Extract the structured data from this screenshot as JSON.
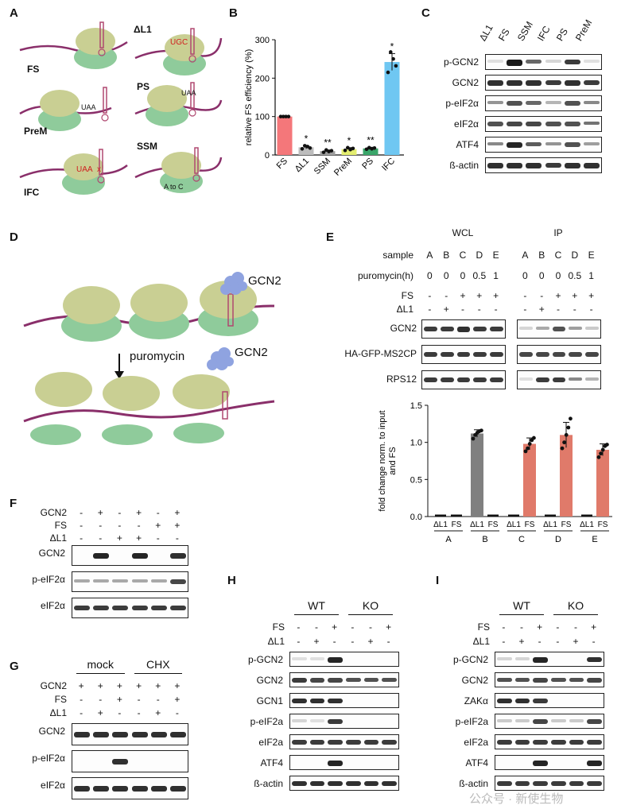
{
  "panel_a": {
    "letter": "A",
    "labels": {
      "fs": "FS",
      "dl1": "ΔL1",
      "prem": "PreM",
      "ps": "PS",
      "ssm": "SSM",
      "ifc": "IFC"
    },
    "codon_labels": {
      "ugc": "UGC",
      "uaa_1": "UAA",
      "uaa_2": "UAA",
      "uaa_x": "UAA",
      "x": "x",
      "a_to_c": "A to C"
    }
  },
  "panel_b": {
    "letter": "B",
    "chart_data": {
      "type": "bar",
      "categories": [
        "FS",
        "ΔL1",
        "SSM",
        "PreM",
        "PS",
        "IFC"
      ],
      "values": [
        100,
        20,
        10,
        15,
        17,
        242
      ],
      "errors": [
        0,
        4,
        3,
        4,
        3,
        22
      ],
      "significance": [
        "",
        "*",
        "**",
        "*",
        "**",
        "*"
      ],
      "bar_colors": [
        "#f4777a",
        "#bdbdbd",
        "#9e9e9e",
        "#e4ee70",
        "#3aa66a",
        "#6fc7f2"
      ],
      "points": [
        [
          100,
          100,
          100,
          100
        ],
        [
          16,
          24,
          22,
          18
        ],
        [
          7,
          13,
          9,
          11
        ],
        [
          12,
          19,
          14,
          17
        ],
        [
          15,
          19,
          16,
          18
        ],
        [
          215,
          268,
          250,
          232
        ]
      ],
      "ylabel": "relative FS efficiency (%)",
      "ylim": [
        0,
        300
      ],
      "yticks": [
        0,
        100,
        200,
        300
      ]
    }
  },
  "panel_c": {
    "letter": "C",
    "lanes": [
      "ΔL1",
      "FS",
      "SSM",
      "IFC",
      "PS",
      "PreM"
    ],
    "rows": [
      {
        "label": "p-GCN2",
        "levels": [
          0.05,
          0.95,
          0.6,
          0.1,
          0.8,
          0.05
        ]
      },
      {
        "label": "GCN2",
        "levels": [
          0.85,
          0.85,
          0.85,
          0.8,
          0.85,
          0.8
        ]
      },
      {
        "label": "p-eIF2α",
        "levels": [
          0.4,
          0.7,
          0.6,
          0.25,
          0.7,
          0.45
        ]
      },
      {
        "label": "eIF2α",
        "levels": [
          0.7,
          0.75,
          0.75,
          0.7,
          0.7,
          0.55
        ]
      },
      {
        "label": "ATF4",
        "levels": [
          0.45,
          0.9,
          0.65,
          0.4,
          0.7,
          0.35
        ]
      },
      {
        "label": "ß-actin",
        "levels": [
          0.85,
          0.85,
          0.85,
          0.8,
          0.85,
          0.85
        ]
      }
    ]
  },
  "panel_d": {
    "letter": "D",
    "gcn2_top": "GCN2",
    "gcn2_mid": "GCN2",
    "arrow_label": "puromycin"
  },
  "panel_e": {
    "letter": "E",
    "group_wcl": "WCL",
    "group_ip": "IP",
    "sample_label": "sample",
    "puromycin_label": "puromycin(h)",
    "fs_label": "FS",
    "dl1_label": "ΔL1",
    "samples": [
      "A",
      "B",
      "C",
      "D",
      "E"
    ],
    "puromycin": [
      "0",
      "0",
      "0",
      "0.5",
      "1"
    ],
    "fs": [
      "-",
      "-",
      "+",
      "+",
      "+"
    ],
    "dl1": [
      "-",
      "+",
      "-",
      "-",
      "-"
    ],
    "blots": [
      {
        "label": "GCN2",
        "wcl": [
          0.8,
          0.8,
          0.85,
          0.8,
          0.8
        ],
        "ip": [
          0.1,
          0.3,
          0.7,
          0.35,
          0.15
        ]
      },
      {
        "label": "HA-GFP-MS2CP",
        "wcl": [
          0.8,
          0.8,
          0.8,
          0.8,
          0.8
        ],
        "ip": [
          0.75,
          0.75,
          0.75,
          0.75,
          0.75
        ]
      },
      {
        "label": "RPS12",
        "wcl": [
          0.8,
          0.8,
          0.8,
          0.8,
          0.8
        ],
        "ip": [
          0.05,
          0.8,
          0.8,
          0.45,
          0.25
        ]
      }
    ],
    "chart_data": {
      "type": "bar",
      "groups": [
        "A",
        "B",
        "C",
        "D",
        "E"
      ],
      "subcategories": [
        "ΔL1",
        "FS"
      ],
      "series": [
        {
          "name": "ΔL1",
          "values": [
            0,
            1.12,
            0,
            0,
            0
          ]
        },
        {
          "name": "FS",
          "values": [
            0,
            0,
            0.98,
            1.1,
            0.9
          ]
        }
      ],
      "errors": {
        "ΔL1": [
          0,
          0.05,
          0,
          0,
          0
        ],
        "FS": [
          0,
          0,
          0.08,
          0.17,
          0.08
        ]
      },
      "points": {
        "ΔL1": [
          [],
          [
            1.05,
            1.1,
            1.13,
            1.15,
            1.16
          ],
          [],
          [],
          []
        ],
        "FS": [
          [],
          [],
          [
            0.88,
            0.92,
            0.98,
            1.03,
            1.06
          ],
          [
            0.92,
            1.0,
            1.1,
            1.2,
            1.32
          ],
          [
            0.8,
            0.85,
            0.9,
            0.95,
            0.97
          ]
        ]
      },
      "bar_colors": {
        "ΔL1": "#808080",
        "FS": "#e07a6a"
      },
      "ylabel": "fold change norm. to input and FS",
      "ylim": [
        0,
        1.5
      ],
      "yticks": [
        "0.0",
        "0.5",
        "1.0",
        "1.5"
      ]
    }
  },
  "panel_f": {
    "letter": "F",
    "cond_labels": [
      "GCN2",
      "FS",
      "ΔL1"
    ],
    "conditions": [
      [
        "-",
        "+",
        "-",
        "+",
        "-",
        "+"
      ],
      [
        "-",
        "-",
        "-",
        "-",
        "+",
        "+"
      ],
      [
        "-",
        "-",
        "+",
        "+",
        "-",
        "-"
      ]
    ],
    "rows": [
      {
        "label": "GCN2",
        "levels": [
          0,
          0.9,
          0,
          0.9,
          0,
          0.85
        ]
      },
      {
        "label": "p-eIF2α",
        "levels": [
          0.3,
          0.3,
          0.3,
          0.3,
          0.3,
          0.75
        ]
      },
      {
        "label": "eIF2α",
        "levels": [
          0.8,
          0.8,
          0.8,
          0.8,
          0.8,
          0.8
        ]
      }
    ]
  },
  "panel_g": {
    "letter": "G",
    "group_mock": "mock",
    "group_chx": "CHX",
    "cond_labels": [
      "GCN2",
      "FS",
      "ΔL1"
    ],
    "conditions": [
      [
        "+",
        "+",
        "+",
        "+",
        "+",
        "+"
      ],
      [
        "-",
        "-",
        "+",
        "-",
        "-",
        "+"
      ],
      [
        "-",
        "+",
        "-",
        "-",
        "+",
        "-"
      ]
    ],
    "rows": [
      {
        "label": "GCN2",
        "levels": [
          0.85,
          0.85,
          0.85,
          0.85,
          0.85,
          0.85
        ]
      },
      {
        "label": "p-eIF2α",
        "levels": [
          0,
          0,
          0.85,
          0,
          0,
          0
        ]
      },
      {
        "label": "eIF2α",
        "levels": [
          0.85,
          0.85,
          0.85,
          0.85,
          0.85,
          0.85
        ]
      }
    ]
  },
  "panel_h": {
    "letter": "H",
    "gene": "GCN1",
    "group_wt": "WT",
    "group_ko": "KO",
    "cond_labels": [
      "FS",
      "ΔL1"
    ],
    "conditions": [
      [
        "-",
        "-",
        "+",
        "-",
        "-",
        "+"
      ],
      [
        "-",
        "+",
        "-",
        "-",
        "+",
        "-"
      ]
    ],
    "rows": [
      {
        "label": "p-GCN2",
        "levels": [
          0.05,
          0.05,
          0.9,
          0,
          0,
          0
        ]
      },
      {
        "label": "GCN2",
        "levels": [
          0.8,
          0.75,
          0.75,
          0.7,
          0.7,
          0.7
        ]
      },
      {
        "label": "GCN1",
        "levels": [
          0.85,
          0.85,
          0.85,
          0,
          0,
          0
        ]
      },
      {
        "label": "p-eIF2a",
        "levels": [
          0.1,
          0.05,
          0.8,
          0,
          0,
          0
        ]
      },
      {
        "label": "eIF2a",
        "levels": [
          0.8,
          0.8,
          0.8,
          0.8,
          0.8,
          0.8
        ]
      },
      {
        "label": "ATF4",
        "levels": [
          0,
          0,
          0.9,
          0,
          0,
          0
        ]
      },
      {
        "label": "ß-actin",
        "levels": [
          0.85,
          0.85,
          0.85,
          0.85,
          0.85,
          0.85
        ]
      }
    ]
  },
  "panel_i": {
    "letter": "I",
    "gene": "ZAKα",
    "group_wt": "WT",
    "group_ko": "KO",
    "cond_labels": [
      "FS",
      "ΔL1"
    ],
    "conditions": [
      [
        "-",
        "-",
        "+",
        "-",
        "-",
        "+"
      ],
      [
        "-",
        "+",
        "-",
        "-",
        "+",
        "-"
      ]
    ],
    "rows": [
      {
        "label": "p-GCN2",
        "levels": [
          0.1,
          0.1,
          0.9,
          0,
          0,
          0.85
        ]
      },
      {
        "label": "GCN2",
        "levels": [
          0.7,
          0.7,
          0.75,
          0.7,
          0.7,
          0.75
        ]
      },
      {
        "label": "ZAKα",
        "levels": [
          0.85,
          0.85,
          0.8,
          0,
          0,
          0
        ]
      },
      {
        "label": "p-eIF2a",
        "levels": [
          0.15,
          0.15,
          0.75,
          0.15,
          0.15,
          0.75
        ]
      },
      {
        "label": "eIF2a",
        "levels": [
          0.8,
          0.8,
          0.8,
          0.8,
          0.8,
          0.8
        ]
      },
      {
        "label": "ATF4",
        "levels": [
          0,
          0,
          0.9,
          0,
          0,
          0.9
        ]
      },
      {
        "label": "ß-actin",
        "levels": [
          0.8,
          0.8,
          0.8,
          0.8,
          0.8,
          0.8
        ]
      }
    ]
  },
  "watermark": "公众号 · 新使生物"
}
